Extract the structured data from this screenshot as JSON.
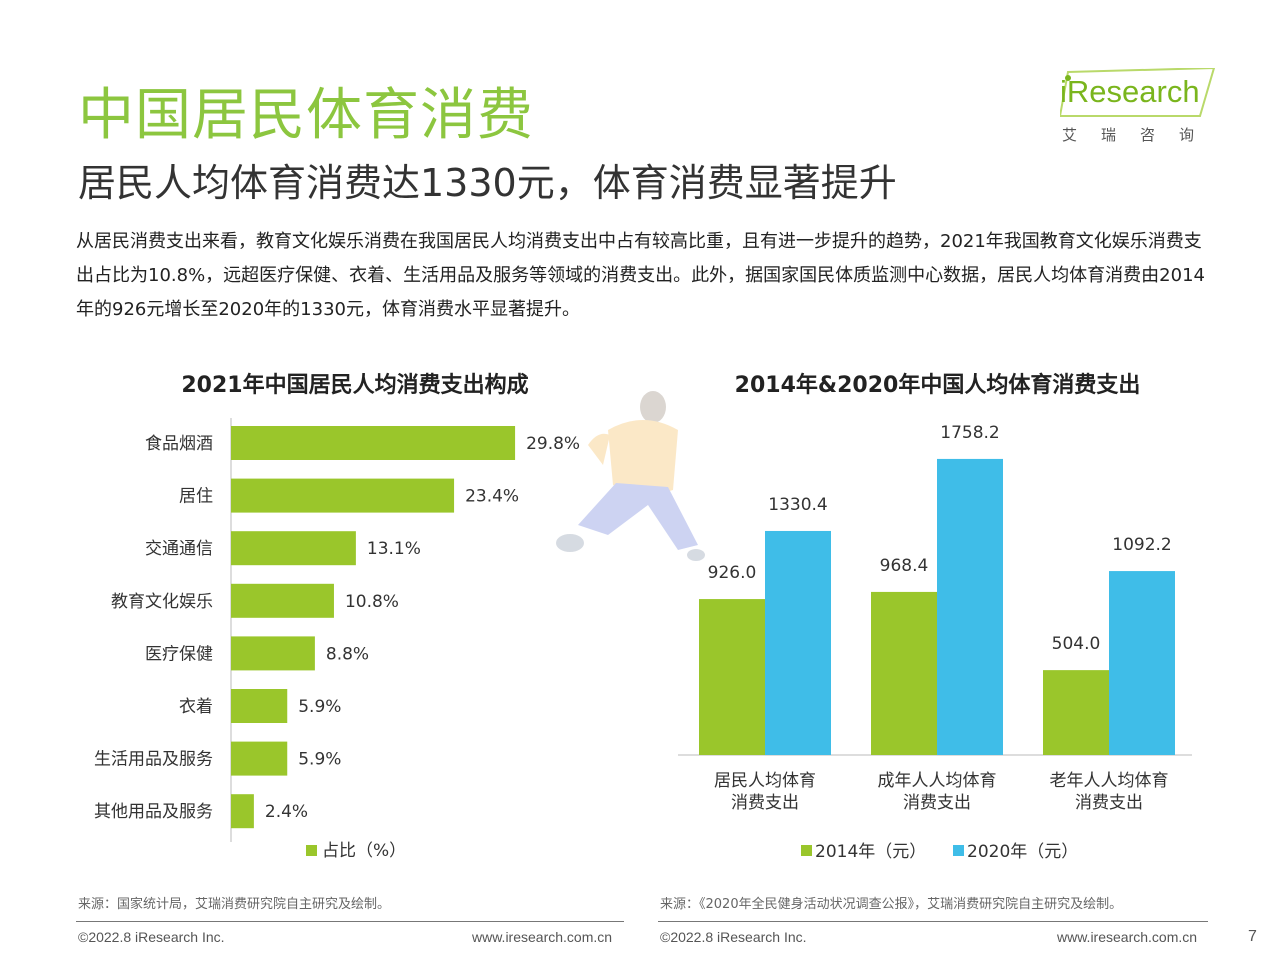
{
  "header": {
    "title": "中国居民体育消费",
    "subtitle": "居民人均体育消费达1330元，体育消费显著提升",
    "intro": "从居民消费支出来看，教育文化娱乐消费在我国居民人均消费支出中占有较高比重，且有进一步提升的趋势，2021年我国教育文化娱乐消费支出占比为10.8%，远超医疗保健、衣着、生活用品及服务等领域的消费支出。此外，据国家国民体质监测中心数据，居民人均体育消费由2014年的926元增长至2020年的1330元，体育消费水平显著提升。"
  },
  "logo": {
    "word": "iResearch",
    "sub": "艾瑞咨询"
  },
  "chart_data": [
    {
      "type": "bar",
      "orientation": "horizontal",
      "title": "2021年中国居民人均消费支出构成",
      "categories": [
        "食品烟酒",
        "居住",
        "交通通信",
        "教育文化娱乐",
        "医疗保健",
        "衣着",
        "生活用品及服务",
        "其他用品及服务"
      ],
      "series": [
        {
          "name": "占比（%）",
          "values": [
            29.8,
            23.4,
            13.1,
            10.8,
            8.8,
            5.9,
            5.9,
            2.4
          ]
        }
      ],
      "value_suffix": "%",
      "xlim": [
        0,
        32
      ],
      "legend": "bottom",
      "color": "#9ac62b"
    },
    {
      "type": "bar",
      "title": "2014年&2020年中国人均体育消费支出",
      "categories": [
        "居民人均体育\n消费支出",
        "成年人人均体育\n消费支出",
        "老年人人均体育\n消费支出"
      ],
      "series": [
        {
          "name": "2014年（元）",
          "values": [
            926.0,
            968.4,
            504.0
          ],
          "color": "#9ac62b"
        },
        {
          "name": "2020年（元）",
          "values": [
            1330.4,
            1758.2,
            1092.2
          ],
          "color": "#3fbde8"
        }
      ],
      "ylim": [
        0,
        1900
      ],
      "legend": "bottom"
    }
  ],
  "sources": {
    "left": "来源：国家统计局，艾瑞消费研究院自主研究及绘制。",
    "right": "来源：《2020年全民健身活动状况调查公报》，艾瑞消费研究院自主研究及绘制。"
  },
  "footer": {
    "copyright": "©2022.8 iResearch Inc.",
    "url": "www.iresearch.com.cn",
    "page": "7"
  }
}
